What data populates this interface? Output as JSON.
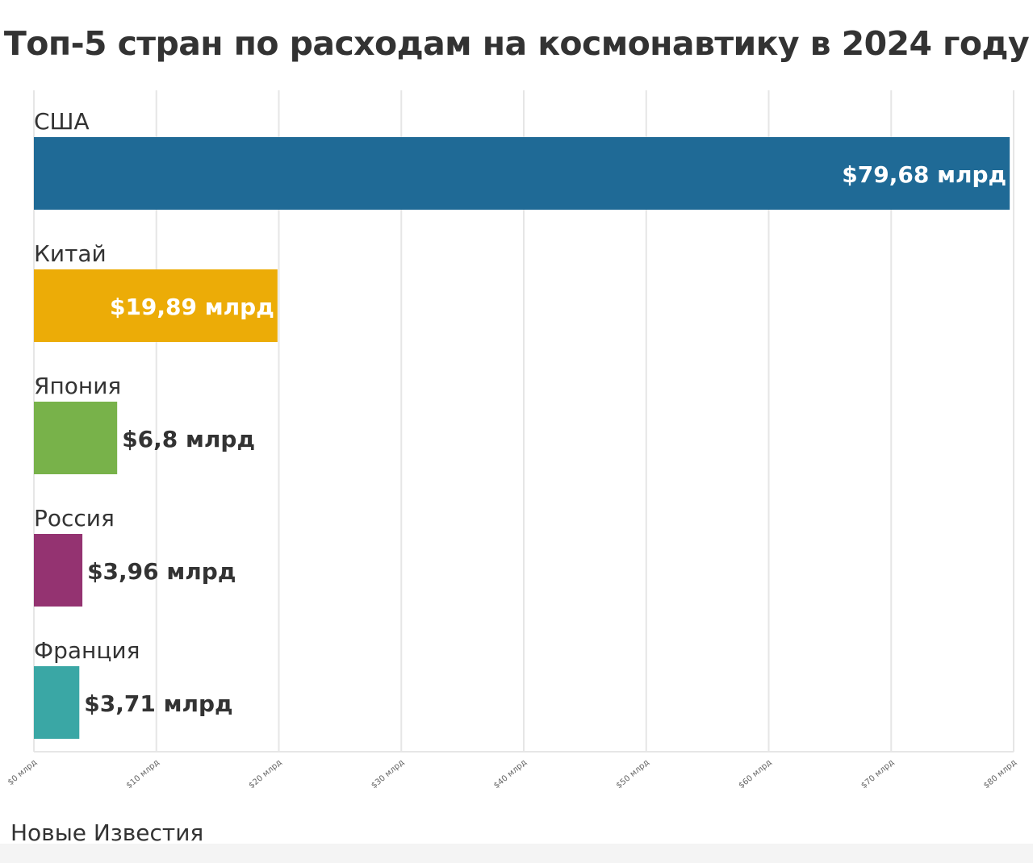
{
  "source": "Новые Известия",
  "chart_data": {
    "type": "bar",
    "orientation": "horizontal",
    "title": "Топ-5 стран по расходам на космонавтику в 2024 году",
    "categories": [
      "США",
      "Китай",
      "Япония",
      "Россия",
      "Франция"
    ],
    "values": [
      79.68,
      19.89,
      6.8,
      3.96,
      3.71
    ],
    "value_labels": [
      "$79,68 млрд",
      "$19,89 млрд",
      "$6,8 млрд",
      "$3,96 млрд",
      "$3,71 млрд"
    ],
    "colors": [
      "#1f6a96",
      "#ecac07",
      "#78b24a",
      "#943371",
      "#3aa7a5"
    ],
    "xlim": [
      0,
      80
    ],
    "x_ticks": [
      0,
      10,
      20,
      30,
      40,
      50,
      60,
      70,
      80
    ],
    "x_tick_labels": [
      "$0 млрд",
      "$10 млрд",
      "$20 млрд",
      "$30 млрд",
      "$40 млрд",
      "$50 млрд",
      "$60 млрд",
      "$70 млрд",
      "$80 млрд"
    ],
    "grid": true,
    "legend": "none"
  }
}
